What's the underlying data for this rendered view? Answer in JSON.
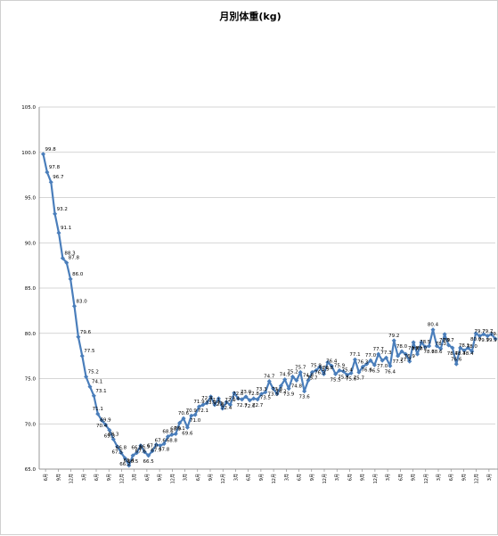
{
  "chart_data": {
    "type": "line",
    "title": "月別体重(kg)",
    "ylim": [
      65.0,
      105.0
    ],
    "y_ticks": [
      "65.0",
      "70.0",
      "75.0",
      "80.0",
      "85.0",
      "90.0",
      "95.0",
      "100.0",
      "105.0"
    ],
    "grid": "horizontal",
    "legend": "none",
    "series_color": "#4a7ebb",
    "x_labels": [
      "6月",
      "9月",
      "12月",
      "3月",
      "6月",
      "9月",
      "12月",
      "3月",
      "6月",
      "9月",
      "12月",
      "3月",
      "6月",
      "9月",
      "12月",
      "3月",
      "6月",
      "9月",
      "12月",
      "3月",
      "6月",
      "9月",
      "12月",
      "3月",
      "6月",
      "9月",
      "12月",
      "3月",
      "6月",
      "9月",
      "12月",
      "3月",
      "6月",
      "9月",
      "12月",
      "3月"
    ],
    "values": [
      99.8,
      97.8,
      96.7,
      93.2,
      91.1,
      88.3,
      87.8,
      86.0,
      83.0,
      79.6,
      77.5,
      75.2,
      74.1,
      73.1,
      71.1,
      70.4,
      69.9,
      69.3,
      68.3,
      67.5,
      66.8,
      66.2,
      65.4,
      66.5,
      66.8,
      67.6,
      66.9,
      66.5,
      67.0,
      67.7,
      67.6,
      67.8,
      68.6,
      68.8,
      68.9,
      70.1,
      70.6,
      69.6,
      70.9,
      71.0,
      71.9,
      72.1,
      72.3,
      73.0,
      72.1,
      72.8,
      71.7,
      72.4,
      72.1,
      73.4,
      72.8,
      72.7,
      73.0,
      72.6,
      72.8,
      72.7,
      73.3,
      73.5,
      74.7,
      73.9,
      73.3,
      74.2,
      74.9,
      73.9,
      75.2,
      74.8,
      75.7,
      73.6,
      74.8,
      75.7,
      75.9,
      76.3,
      75.5,
      76.8,
      76.4,
      75.5,
      75.9,
      75.8,
      75.4,
      75.6,
      77.1,
      75.7,
      76.3,
      76.6,
      77.0,
      76.5,
      77.7,
      77.0,
      77.3,
      76.4,
      79.2,
      77.5,
      78.0,
      77.7,
      76.9,
      79.0,
      77.7,
      79.0,
      78.5,
      78.6,
      80.4,
      78.6,
      78.3,
      79.9,
      78.7,
      78.4,
      76.6,
      78.4,
      78.1,
      78.4,
      78.0,
      80.0,
      79.7,
      79.9,
      79.7,
      79.9,
      79.4
    ],
    "data_labels": [
      "99.8",
      "97.8",
      "96.7",
      "93.2",
      "91.1",
      "88.3",
      "87.8",
      "86.0",
      "83.0",
      "79.6",
      "77.5",
      "75.2",
      "74.1",
      "73.1",
      "71.1",
      "70.4",
      "69.9",
      "69.3",
      "68.3",
      "67.5",
      "66.8",
      "66.2",
      "65.4",
      "66.5",
      "66.8",
      "67.6",
      "66.9",
      "66.5",
      "67.0",
      "67.7",
      "67.6",
      "67.8",
      "68.6",
      "68.8",
      "68.9",
      "70.1",
      "70.6",
      "69.6",
      "70.9",
      "71.0",
      "71.9",
      "72.1",
      "72.3",
      "73.0",
      "72.1",
      "72.8",
      "71.7",
      "72.4",
      "72.1",
      "73.4",
      "72.8",
      "72.7",
      "73.0",
      "72.6",
      "72.8",
      "72.7",
      "73.3",
      "73.5",
      "74.7",
      "73.9",
      "73.3",
      "74.2",
      "74.9",
      "73.9",
      "75.2",
      "74.8",
      "75.7",
      "73.6",
      "74.8",
      "75.7",
      "75.9",
      "76.3",
      "75.5",
      "76.8",
      "76.4",
      "75.5",
      "75.9",
      "75.8",
      "75.4",
      "75.6",
      "77.1",
      "75.7",
      "76.3",
      "76.6",
      "77.0",
      "76.5",
      "77.7",
      "77.0",
      "77.3",
      "76.4",
      "79.2",
      "77.5",
      "78.0",
      "77.7",
      "76.9",
      "79.0",
      "77.7",
      "79.0",
      "78.5",
      "78.6",
      "80.4",
      "78.6",
      "78.3",
      "79.9",
      "78.7",
      "78.4",
      "76.6",
      "78.4",
      "78.1",
      "78.4",
      "78.0",
      "80.0",
      "79.7",
      "79.9",
      "79.7",
      "79.9",
      "79.4"
    ]
  }
}
